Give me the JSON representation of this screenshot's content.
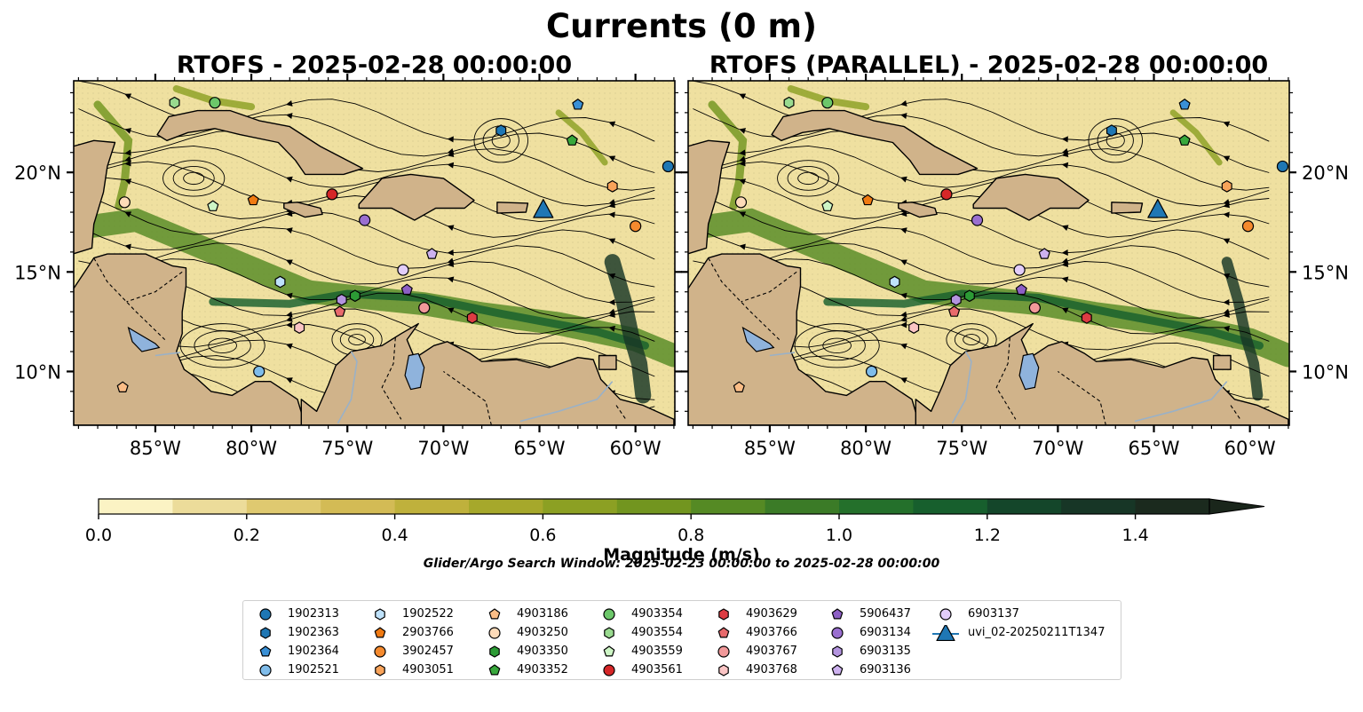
{
  "title": "Currents (0 m)",
  "panels": [
    {
      "title": "RTOFS - 2025-02-28 00:00:00"
    },
    {
      "title": "RTOFS (PARALLEL) - 2025-02-28 00:00:00"
    }
  ],
  "axes": {
    "lon_ticks": [
      "85°W",
      "80°W",
      "75°W",
      "70°W",
      "65°W",
      "60°W"
    ],
    "lat_ticks": [
      "20°N",
      "15°N",
      "10°N"
    ]
  },
  "colorbar": {
    "label": "Magnitude (m/s)",
    "ticks": [
      "0.0",
      "0.2",
      "0.4",
      "0.6",
      "0.8",
      "1.0",
      "1.2",
      "1.4"
    ],
    "range": [
      0,
      1.5
    ],
    "extend": "max",
    "colors": [
      "#fbf3c4",
      "#ecdc9a",
      "#dfc970",
      "#d3bb55",
      "#bfb13c",
      "#a6a82b",
      "#8ca023",
      "#72951f",
      "#558a24",
      "#3b7b27",
      "#24702b",
      "#175f2d",
      "#14462a",
      "#173626",
      "#1b2a1e"
    ]
  },
  "search_window": "Glider/Argo Search Window: 2025-02-23 00:00:00 to 2025-02-28 00:00:00",
  "legend": [
    {
      "label": "1902313",
      "shape": "circle",
      "color": "#1f77b4"
    },
    {
      "label": "1902363",
      "shape": "hexagon",
      "color": "#1f77b4"
    },
    {
      "label": "1902364",
      "shape": "pentagon",
      "color": "#3a90d6"
    },
    {
      "label": "1902521",
      "shape": "circle",
      "color": "#7fbcea"
    },
    {
      "label": "1902522",
      "shape": "hexagon",
      "color": "#bfe2fb"
    },
    {
      "label": "2903766",
      "shape": "pentagon",
      "color": "#f07a12"
    },
    {
      "label": "3902457",
      "shape": "circle",
      "color": "#f58a2e"
    },
    {
      "label": "4903051",
      "shape": "hexagon",
      "color": "#f8a35a"
    },
    {
      "label": "4903186",
      "shape": "pentagon",
      "color": "#fbbd86"
    },
    {
      "label": "4903250",
      "shape": "circle",
      "color": "#fddbb9"
    },
    {
      "label": "4903350",
      "shape": "hexagon",
      "color": "#2c9b35"
    },
    {
      "label": "4903352",
      "shape": "pentagon",
      "color": "#38a83c"
    },
    {
      "label": "4903354",
      "shape": "circle",
      "color": "#6cc76a"
    },
    {
      "label": "4903554",
      "shape": "hexagon",
      "color": "#99da8f"
    },
    {
      "label": "4903559",
      "shape": "pentagon",
      "color": "#cdf5c5"
    },
    {
      "label": "4903561",
      "shape": "circle",
      "color": "#d62728"
    },
    {
      "label": "4903629",
      "shape": "hexagon",
      "color": "#dc3c43"
    },
    {
      "label": "4903766",
      "shape": "pentagon",
      "color": "#e86a6c"
    },
    {
      "label": "4903767",
      "shape": "circle",
      "color": "#f2999a"
    },
    {
      "label": "4903768",
      "shape": "hexagon",
      "color": "#fbc5c5"
    },
    {
      "label": "5906437",
      "shape": "pentagon",
      "color": "#8d5fc5"
    },
    {
      "label": "6903134",
      "shape": "circle",
      "color": "#9a6fd0"
    },
    {
      "label": "6903135",
      "shape": "hexagon",
      "color": "#b394df"
    },
    {
      "label": "6903136",
      "shape": "pentagon",
      "color": "#cdb1ef"
    },
    {
      "label": "6903137",
      "shape": "circle",
      "color": "#e2cdfa"
    },
    {
      "label": "uvi_02-20250211T1347",
      "shape": "triangle",
      "color": "#1f77b4"
    }
  ],
  "floats_left": [
    {
      "id": "1902313",
      "lon": -58.3,
      "lat": 20.3
    },
    {
      "id": "1902363",
      "lon": -67.0,
      "lat": 22.1
    },
    {
      "id": "1902364",
      "lon": -63.0,
      "lat": 23.4
    },
    {
      "id": "1902521",
      "lon": -79.6,
      "lat": 10.0
    },
    {
      "id": "1902522",
      "lon": -78.5,
      "lat": 14.5
    },
    {
      "id": "2903766",
      "lon": -79.9,
      "lat": 18.6
    },
    {
      "id": "3902457",
      "lon": -60.0,
      "lat": 17.3
    },
    {
      "id": "4903051",
      "lon": -61.2,
      "lat": 19.3
    },
    {
      "id": "4903186",
      "lon": -86.7,
      "lat": 9.2
    },
    {
      "id": "4903250",
      "lon": -86.6,
      "lat": 18.5
    },
    {
      "id": "4903350",
      "lon": -74.6,
      "lat": 13.8
    },
    {
      "id": "4903352",
      "lon": -63.3,
      "lat": 21.6
    },
    {
      "id": "4903354",
      "lon": -81.9,
      "lat": 23.5
    },
    {
      "id": "4903554",
      "lon": -84.0,
      "lat": 23.5
    },
    {
      "id": "4903559",
      "lon": -82.0,
      "lat": 18.3
    },
    {
      "id": "4903561",
      "lon": -75.8,
      "lat": 18.9
    },
    {
      "id": "4903629",
      "lon": -68.5,
      "lat": 12.7
    },
    {
      "id": "4903766",
      "lon": -75.4,
      "lat": 13.0
    },
    {
      "id": "4903767",
      "lon": -71.0,
      "lat": 13.2
    },
    {
      "id": "4903768",
      "lon": -77.5,
      "lat": 12.2
    },
    {
      "id": "5906437",
      "lon": -71.9,
      "lat": 14.1
    },
    {
      "id": "6903134",
      "lon": -74.1,
      "lat": 17.6
    },
    {
      "id": "6903135",
      "lon": -75.3,
      "lat": 13.6
    },
    {
      "id": "6903136",
      "lon": -70.6,
      "lat": 15.9
    },
    {
      "id": "6903137",
      "lon": -72.1,
      "lat": 15.1
    },
    {
      "id": "uvi_02-20250211T1347",
      "lon": -64.8,
      "lat": 18.1
    }
  ],
  "floats_right": [
    {
      "id": "1902313",
      "lon": -58.3,
      "lat": 20.3
    },
    {
      "id": "1902363",
      "lon": -67.2,
      "lat": 22.1
    },
    {
      "id": "1902364",
      "lon": -63.4,
      "lat": 23.4
    },
    {
      "id": "1902521",
      "lon": -79.7,
      "lat": 10.0
    },
    {
      "id": "1902522",
      "lon": -78.5,
      "lat": 14.5
    },
    {
      "id": "2903766",
      "lon": -79.9,
      "lat": 18.6
    },
    {
      "id": "3902457",
      "lon": -60.1,
      "lat": 17.3
    },
    {
      "id": "4903051",
      "lon": -61.2,
      "lat": 19.3
    },
    {
      "id": "4903186",
      "lon": -86.6,
      "lat": 9.2
    },
    {
      "id": "4903250",
      "lon": -86.5,
      "lat": 18.5
    },
    {
      "id": "4903350",
      "lon": -74.6,
      "lat": 13.8
    },
    {
      "id": "4903352",
      "lon": -63.4,
      "lat": 21.6
    },
    {
      "id": "4903354",
      "lon": -82.0,
      "lat": 23.5
    },
    {
      "id": "4903554",
      "lon": -84.0,
      "lat": 23.5
    },
    {
      "id": "4903559",
      "lon": -82.0,
      "lat": 18.3
    },
    {
      "id": "4903561",
      "lon": -75.8,
      "lat": 18.9
    },
    {
      "id": "4903629",
      "lon": -68.5,
      "lat": 12.7
    },
    {
      "id": "4903766",
      "lon": -75.4,
      "lat": 13.0
    },
    {
      "id": "4903767",
      "lon": -71.2,
      "lat": 13.2
    },
    {
      "id": "4903768",
      "lon": -77.5,
      "lat": 12.2
    },
    {
      "id": "5906437",
      "lon": -71.9,
      "lat": 14.1
    },
    {
      "id": "6903134",
      "lon": -74.2,
      "lat": 17.6
    },
    {
      "id": "6903135",
      "lon": -75.3,
      "lat": 13.6
    },
    {
      "id": "6903136",
      "lon": -70.7,
      "lat": 15.9
    },
    {
      "id": "6903137",
      "lon": -72.0,
      "lat": 15.1
    },
    {
      "id": "uvi_02-20250211T1347",
      "lon": -64.8,
      "lat": 18.1
    }
  ]
}
